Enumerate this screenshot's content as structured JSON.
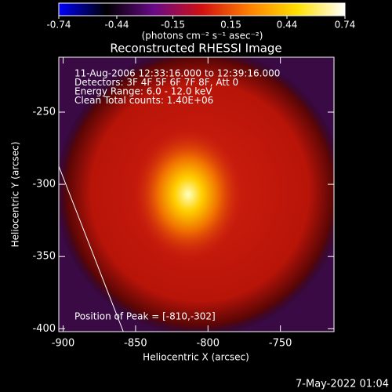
{
  "chart_data": {
    "type": "image",
    "title": "Reconstructed RHESSI Image",
    "colorbar": {
      "label": "(photons cm⁻² s⁻¹ asec⁻²)",
      "lim": [
        -0.74,
        0.74
      ],
      "ticks": [
        -0.74,
        -0.44,
        -0.15,
        0.15,
        0.44,
        0.74
      ],
      "colors": [
        "#0000ff",
        "#000000",
        "#6a0a8a",
        "#d01010",
        "#ff8000",
        "#ffe000",
        "#ffffff"
      ]
    },
    "annotations": [
      "11-Aug-2006 12:33:16.000 to 12:39:16.000",
      "Detectors: 3F 4F 5F 6F 7F 8F, Att 0",
      "Energy Range: 6.0 - 12.0 keV",
      "Clean     Total counts: 1.40E+06"
    ],
    "peak_label": "Position of Peak = [-810,-302]",
    "xlabel": "Heliocentric X (arcsec)",
    "ylabel": "Heliocentric Y (arcsec)",
    "xlim": [
      -903,
      -713
    ],
    "xticks": [
      -900,
      -850,
      -800,
      -750
    ],
    "ylim": [
      -402,
      -212
    ],
    "yticks": [
      -400,
      -350,
      -300,
      -250
    ],
    "timestamp": "7-May-2022 01:04"
  }
}
